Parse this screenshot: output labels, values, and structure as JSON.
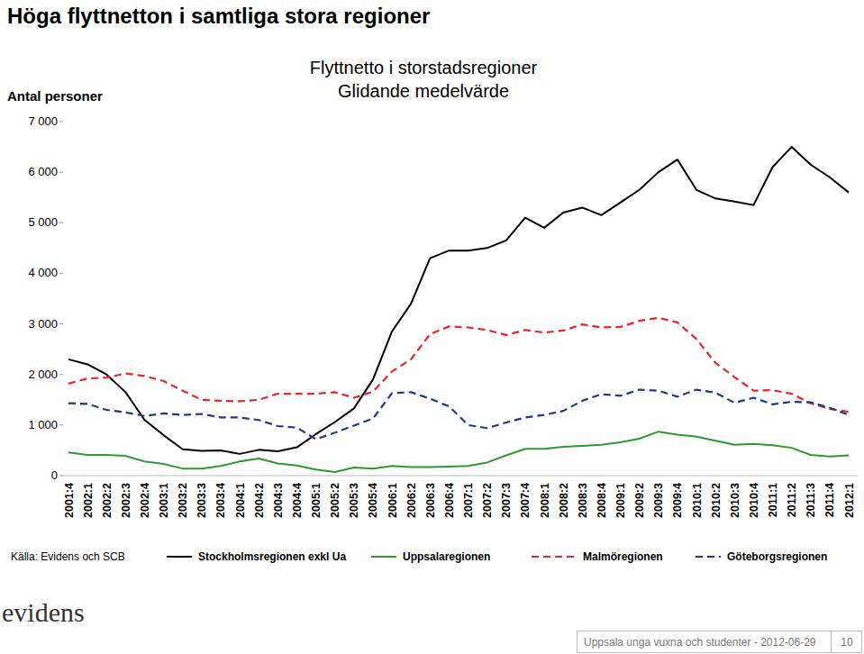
{
  "page": {
    "heading": "Höga flyttnetton i samtliga stora regioner",
    "source": "Källa: Evidens och SCB",
    "logo": "evidens",
    "footer": "Uppsala unga vuxna och studenter - 2012-06-29",
    "page_number": "10"
  },
  "chart_data": {
    "type": "line",
    "title": "Flyttnetto i storstadsregioner",
    "subtitle": "Glidande medelvärde",
    "y_label": "Antal personer",
    "categories": [
      "2001:4",
      "2002:1",
      "2002:2",
      "2002:3",
      "2002:4",
      "2003:1",
      "2003:2",
      "2003:3",
      "2003:4",
      "2004:1",
      "2004:2",
      "2004:3",
      "2004:4",
      "2005:1",
      "2005:2",
      "2005:3",
      "2005:4",
      "2006:1",
      "2006:2",
      "2006:3",
      "2006:4",
      "2007:1",
      "2007:2",
      "2007:3",
      "2007:4",
      "2008:1",
      "2008:2",
      "2008:3",
      "2008:4",
      "2009:1",
      "2009:2",
      "2009:3",
      "2009:4",
      "2010:1",
      "2010:2",
      "2010:3",
      "2010:4",
      "2011:1",
      "2011:2",
      "2011:3",
      "2011:4",
      "2012:1"
    ],
    "series": [
      {
        "name": "Stockholmsregionen exkl Ua",
        "color": "#000000",
        "line_style": "solid",
        "values": [
          2300,
          2200,
          2000,
          1650,
          1100,
          800,
          520,
          490,
          500,
          430,
          510,
          480,
          560,
          820,
          1060,
          1330,
          1900,
          2850,
          3400,
          4300,
          4450,
          4450,
          4500,
          4650,
          5100,
          4900,
          5200,
          5300,
          5150,
          5400,
          5650,
          6000,
          6250,
          5650,
          5480,
          5420,
          5350,
          6100,
          6500,
          6150,
          5900,
          5600
        ]
      },
      {
        "name": "Uppsalaregionen",
        "color": "#2e9a2e",
        "line_style": "solid",
        "values": [
          460,
          410,
          410,
          390,
          280,
          230,
          140,
          140,
          190,
          280,
          340,
          240,
          200,
          120,
          70,
          160,
          140,
          190,
          170,
          170,
          180,
          190,
          260,
          400,
          530,
          530,
          570,
          590,
          610,
          660,
          730,
          870,
          810,
          770,
          690,
          610,
          630,
          600,
          550,
          410,
          380,
          400
        ]
      },
      {
        "name": "Malmöregionen",
        "color": "#e8262a",
        "line_style": "dashed",
        "values": [
          1820,
          1920,
          1940,
          2020,
          1970,
          1870,
          1680,
          1500,
          1480,
          1470,
          1500,
          1620,
          1620,
          1620,
          1650,
          1540,
          1660,
          2060,
          2300,
          2800,
          2950,
          2930,
          2880,
          2780,
          2880,
          2830,
          2870,
          2990,
          2930,
          2940,
          3060,
          3120,
          3030,
          2700,
          2230,
          1950,
          1680,
          1690,
          1620,
          1430,
          1320,
          1260
        ]
      },
      {
        "name": "Göteborgsregionen",
        "color": "#1f3a8a",
        "line_style": "dashed",
        "values": [
          1430,
          1420,
          1300,
          1250,
          1180,
          1230,
          1200,
          1220,
          1150,
          1150,
          1100,
          980,
          950,
          720,
          850,
          990,
          1130,
          1630,
          1650,
          1520,
          1370,
          1000,
          940,
          1050,
          1150,
          1200,
          1280,
          1480,
          1610,
          1580,
          1700,
          1680,
          1560,
          1700,
          1640,
          1440,
          1540,
          1410,
          1460,
          1450,
          1340,
          1200
        ]
      }
    ],
    "ylim": [
      0,
      7000
    ],
    "yticks": [
      0,
      {
        "value": 1000,
        "label": "1 000"
      },
      {
        "value": 2000,
        "label": "2 000"
      },
      {
        "value": 3000,
        "label": "3 000"
      },
      {
        "value": 4000,
        "label": "4 000"
      },
      {
        "value": 5000,
        "label": "5 000"
      },
      {
        "value": 6000,
        "label": "6 000"
      },
      {
        "value": 7000,
        "label": "7 000"
      }
    ],
    "grid": false,
    "legend": "bottom"
  }
}
